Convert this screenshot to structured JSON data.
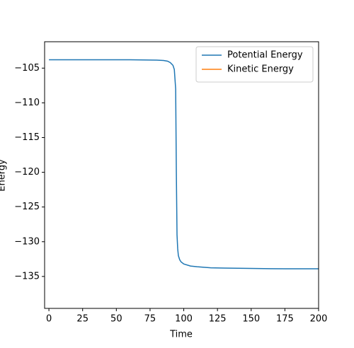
{
  "chart_data": {
    "type": "line",
    "xlabel": "Time",
    "ylabel": "Energy",
    "x": [
      0,
      20,
      40,
      60,
      80,
      85,
      88,
      90,
      92,
      93,
      94,
      94.5,
      95,
      95.5,
      96,
      97,
      98,
      100,
      105,
      110,
      120,
      130,
      150,
      175,
      200
    ],
    "series": [
      {
        "name": "Potential Energy",
        "color": "#1f77b4",
        "values": [
          -103.8,
          -103.8,
          -103.8,
          -103.8,
          -103.85,
          -103.9,
          -104.0,
          -104.2,
          -104.6,
          -105.2,
          -108,
          -120,
          -129,
          -131,
          -132,
          -132.6,
          -132.9,
          -133.2,
          -133.5,
          -133.6,
          -133.75,
          -133.8,
          -133.85,
          -133.9,
          -133.9
        ]
      },
      {
        "name": "Kinetic Energy",
        "color": "#ff7f0e",
        "values": [
          null,
          null,
          null,
          null,
          null,
          null,
          null,
          null,
          null,
          null,
          null,
          null,
          null,
          null,
          null,
          null,
          null,
          null,
          null,
          null,
          null,
          null,
          null,
          null,
          null
        ]
      }
    ],
    "xlim": [
      -3.2,
      200
    ],
    "ylim": [
      -139.6,
      -101.2
    ],
    "xticks": [
      0,
      25,
      50,
      75,
      100,
      125,
      150,
      175,
      200
    ],
    "yticks": [
      {
        "value": -105,
        "label": "−105"
      },
      {
        "value": -110,
        "label": "−110"
      },
      {
        "value": -115,
        "label": "−115"
      },
      {
        "value": -120,
        "label": "−120"
      },
      {
        "value": -125,
        "label": "−125"
      },
      {
        "value": -130,
        "label": "−130"
      },
      {
        "value": -135,
        "label": "−135"
      }
    ],
    "legend": "upper right"
  }
}
